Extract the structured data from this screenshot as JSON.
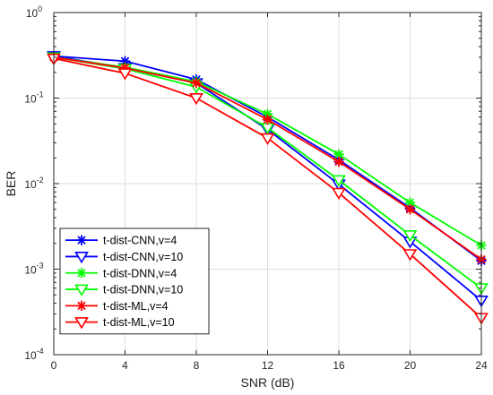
{
  "chart_data": {
    "type": "line",
    "title": "",
    "xlabel": "SNR (dB)",
    "ylabel": "BER",
    "x": [
      0,
      4,
      8,
      12,
      16,
      20,
      24
    ],
    "xticks": [
      0,
      4,
      8,
      12,
      16,
      20,
      24
    ],
    "xlim": [
      0,
      24
    ],
    "ylim": [
      0.0001,
      1
    ],
    "yscale": "log",
    "ytick_exponents": [
      -4,
      -3,
      -2,
      -1,
      0
    ],
    "grid": true,
    "legend_position": "bottom-left",
    "series": [
      {
        "name": "t-dist-CNN,v=4",
        "color": "#0000ff",
        "marker": "asterisk",
        "values": [
          0.31,
          0.27,
          0.165,
          0.06,
          0.019,
          0.0052,
          0.00125
        ]
      },
      {
        "name": "t-dist-CNN,v=10",
        "color": "#0000ff",
        "marker": "triangle-down",
        "values": [
          0.31,
          0.225,
          0.15,
          0.043,
          0.0098,
          0.0021,
          0.00043
        ]
      },
      {
        "name": "t-dist-DNN,v=4",
        "color": "#00ff00",
        "marker": "asterisk",
        "values": [
          0.3,
          0.23,
          0.155,
          0.065,
          0.022,
          0.006,
          0.0019
        ]
      },
      {
        "name": "t-dist-DNN,v=10",
        "color": "#00ff00",
        "marker": "triangle-down",
        "values": [
          0.3,
          0.22,
          0.135,
          0.045,
          0.011,
          0.0025,
          0.0006
        ]
      },
      {
        "name": "t-dist-ML,v=4",
        "color": "#ff0000",
        "marker": "asterisk",
        "values": [
          0.3,
          0.225,
          0.15,
          0.056,
          0.018,
          0.005,
          0.0013
        ]
      },
      {
        "name": "t-dist-ML,v=10",
        "color": "#ff0000",
        "marker": "triangle-down",
        "values": [
          0.29,
          0.195,
          0.1,
          0.034,
          0.0078,
          0.0015,
          0.00027
        ]
      }
    ]
  }
}
